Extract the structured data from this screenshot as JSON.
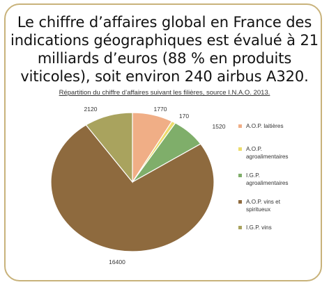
{
  "headline": "Le chiffre d’affaires global en France des indications géographiques est évalué à 21 milliards d’euros (88 % en produits viticoles), soit environ 240 airbus A320.",
  "chart_data": {
    "type": "pie",
    "title": "Répartition du chiffre d’affaires suivant les filières, source I.N.A.O. 2013.",
    "legend_position": "right",
    "slices": [
      {
        "label_lines": [
          "A.O.P. laitières"
        ],
        "value": 1770,
        "value_label": "1770",
        "color": "#f0ae86"
      },
      {
        "label_lines": [
          "A.O.P.",
          "agroalimentaires"
        ],
        "value": 170,
        "value_label": "170",
        "color": "#ecdc6c"
      },
      {
        "label_lines": [
          "I.G.P.",
          "agroalimentaires"
        ],
        "value": 1520,
        "value_label": "1520",
        "color": "#7fae6a"
      },
      {
        "label_lines": [
          "A.O.P. vins et",
          "spiritueux"
        ],
        "value": 16400,
        "value_label": "16400",
        "color": "#8e6a3e"
      },
      {
        "label_lines": [
          "I.G.P. vins"
        ],
        "value": 2120,
        "value_label": "2120",
        "color": "#a9a35e"
      }
    ]
  }
}
